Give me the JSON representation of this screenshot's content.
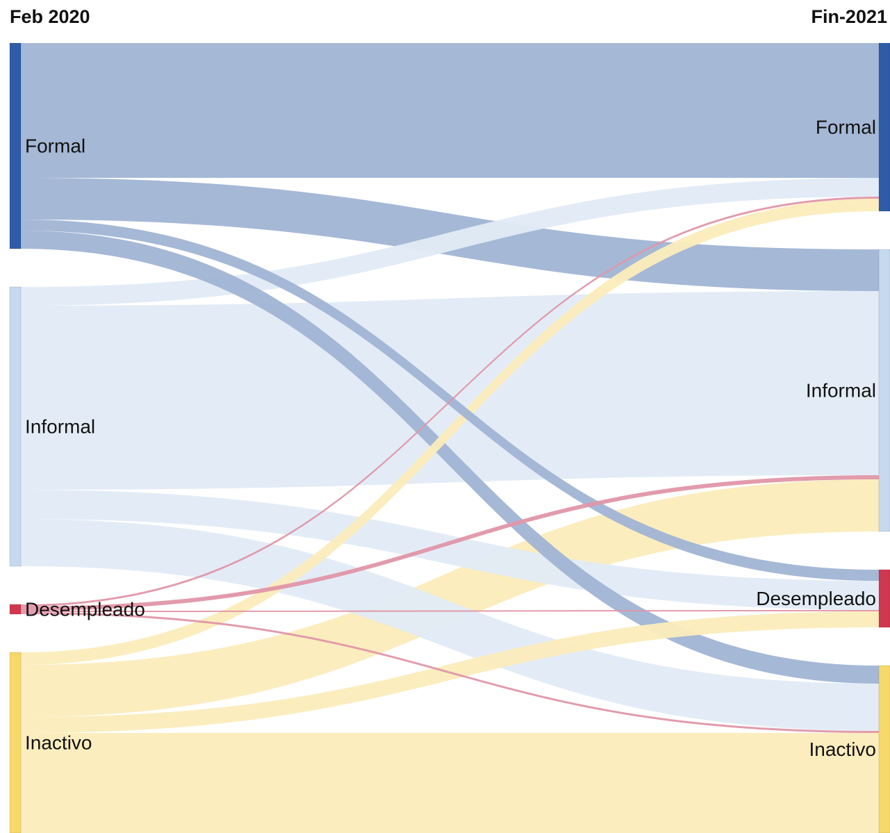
{
  "chart_data": {
    "type": "sankey",
    "columns": [
      "Feb 2020",
      "Fin-2021"
    ],
    "nodes": [
      {
        "name": "Formal",
        "column": 0,
        "color": "#2f5ca8",
        "link_color": "#a0b4d4"
      },
      {
        "name": "Informal",
        "column": 0,
        "color": "#c5d9ef",
        "link_color": "#e1ebf6"
      },
      {
        "name": "Desempleado",
        "column": 0,
        "color": "#d0384f",
        "link_color": "#e096a8"
      },
      {
        "name": "Inactivo",
        "column": 0,
        "color": "#f7d96a",
        "link_color": "#fbecbb"
      },
      {
        "name": "Formal",
        "column": 1,
        "color": "#2f5ca8",
        "link_color": "#a0b4d4"
      },
      {
        "name": "Informal",
        "column": 1,
        "color": "#c5d9ef",
        "link_color": "#e1ebf6"
      },
      {
        "name": "Desempleado",
        "column": 1,
        "color": "#d0384f",
        "link_color": "#e096a8"
      },
      {
        "name": "Inactivo",
        "column": 1,
        "color": "#f7d96a",
        "link_color": "#fbecbb"
      }
    ],
    "links": [
      {
        "source": 0,
        "target": 4,
        "value": 194
      },
      {
        "source": 0,
        "target": 5,
        "value": 60
      },
      {
        "source": 0,
        "target": 6,
        "value": 16
      },
      {
        "source": 0,
        "target": 7,
        "value": 26
      },
      {
        "source": 1,
        "target": 4,
        "value": 27
      },
      {
        "source": 1,
        "target": 5,
        "value": 265
      },
      {
        "source": 1,
        "target": 6,
        "value": 42
      },
      {
        "source": 1,
        "target": 7,
        "value": 68
      },
      {
        "source": 2,
        "target": 4,
        "value": 3
      },
      {
        "source": 2,
        "target": 5,
        "value": 6
      },
      {
        "source": 2,
        "target": 6,
        "value": 2
      },
      {
        "source": 2,
        "target": 7,
        "value": 3
      },
      {
        "source": 3,
        "target": 4,
        "value": 18
      },
      {
        "source": 3,
        "target": 5,
        "value": 75
      },
      {
        "source": 3,
        "target": 6,
        "value": 23
      },
      {
        "source": 3,
        "target": 7,
        "value": 144
      }
    ]
  }
}
